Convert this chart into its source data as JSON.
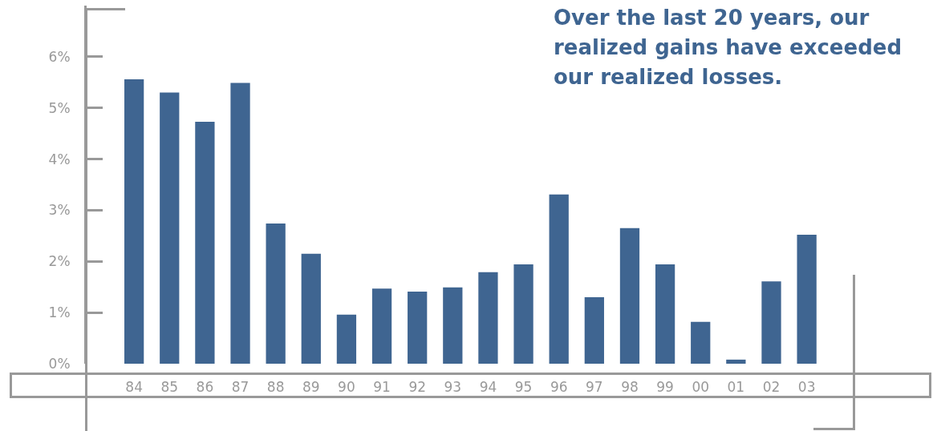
{
  "chart_data": {
    "type": "bar",
    "title": "Over the last 20 years, our realized gains have exceeded our realized losses.",
    "categories": [
      "84",
      "85",
      "86",
      "87",
      "88",
      "89",
      "90",
      "91",
      "92",
      "93",
      "94",
      "95",
      "96",
      "97",
      "98",
      "99",
      "00",
      "01",
      "02",
      "03"
    ],
    "values": [
      5.56,
      5.3,
      4.73,
      5.49,
      2.74,
      2.15,
      0.96,
      1.47,
      1.41,
      1.49,
      1.79,
      1.94,
      3.31,
      1.3,
      2.65,
      1.94,
      0.82,
      0.08,
      1.61,
      2.52
    ],
    "color": "#3f6591",
    "ylim": [
      0,
      7
    ],
    "yticks": [
      {
        "value": 0,
        "label": "0%"
      },
      {
        "value": 1,
        "label": "1%"
      },
      {
        "value": 2,
        "label": "2%"
      },
      {
        "value": 3,
        "label": "3%"
      },
      {
        "value": 4,
        "label": "4%"
      },
      {
        "value": 5,
        "label": "5%"
      },
      {
        "value": 6,
        "label": "6%"
      }
    ],
    "grid": false
  }
}
